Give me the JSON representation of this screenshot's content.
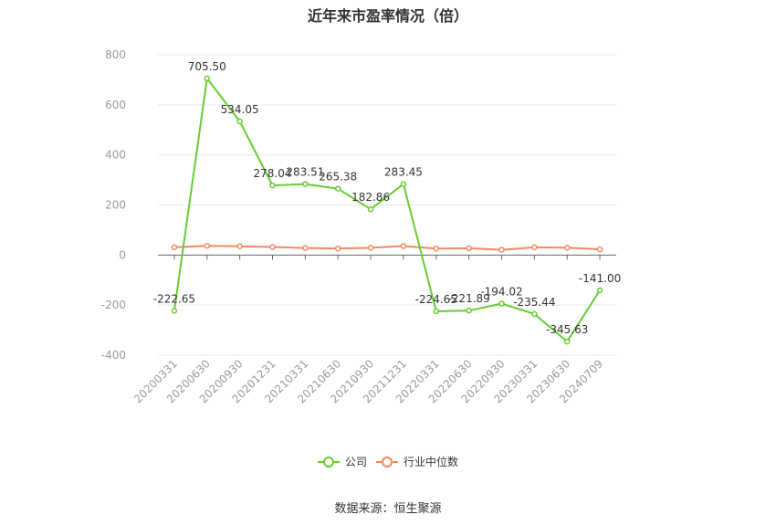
{
  "chart_data": {
    "type": "line",
    "title": "近年来市盈率情况（倍）",
    "categories": [
      "20200331",
      "20200630",
      "20200930",
      "20201231",
      "20210331",
      "20210630",
      "20210930",
      "20211231",
      "20220331",
      "20220630",
      "20220930",
      "20230331",
      "20230630",
      "20240709"
    ],
    "series": [
      {
        "name": "公司",
        "color": "#66cc33",
        "values": [
          -222.65,
          705.5,
          534.05,
          278.04,
          283.51,
          265.38,
          182.86,
          283.45,
          -224.65,
          -221.89,
          -194.02,
          -235.44,
          -345.63,
          -141.0
        ],
        "labels": [
          "-222.65",
          "705.50",
          "534.05",
          "278.04",
          "283.51",
          "265.38",
          "182.86",
          "283.45",
          "-224.65",
          "-221.89",
          "-194.02",
          "-235.44",
          "-345.63",
          "-141.00"
        ]
      },
      {
        "name": "行业中位数",
        "color": "#f2885f",
        "values": [
          31,
          37,
          35,
          32,
          28,
          26,
          29,
          36,
          26,
          27,
          21,
          31,
          29,
          23
        ]
      }
    ],
    "ylim": [
      -400,
      800
    ],
    "yticks": [
      -400,
      -200,
      0,
      200,
      400,
      600,
      800
    ],
    "grid": true,
    "legend_position": "bottom"
  },
  "source": "数据来源：恒生聚源"
}
